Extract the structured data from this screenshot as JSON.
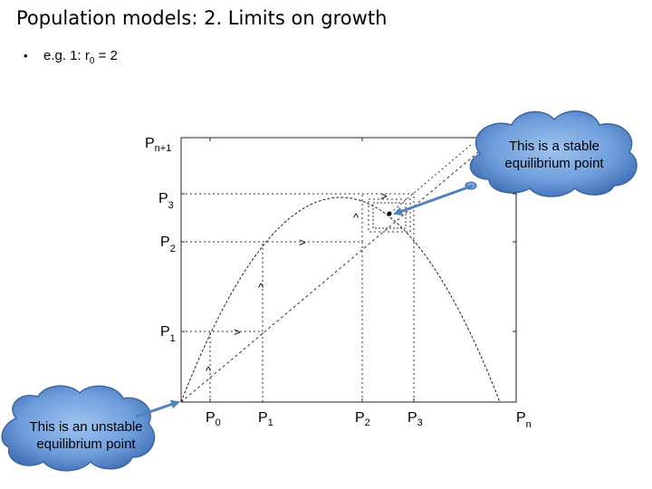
{
  "slide": {
    "title": "Population models: 2. Limits on growth",
    "bullet_marker": "•",
    "bullet_prefix": "e.g. 1: r",
    "bullet_subscript": "0",
    "bullet_suffix": " = 2"
  },
  "diagram": {
    "y_axis_label": {
      "main": "P",
      "sub": "n+1"
    },
    "x_axis_label": {
      "main": "P",
      "sub": "n"
    },
    "y_labels": [
      {
        "main": "P",
        "sub": "3"
      },
      {
        "main": "P",
        "sub": "2"
      },
      {
        "main": "P",
        "sub": "1"
      }
    ],
    "x_labels": [
      {
        "main": "P",
        "sub": "0"
      },
      {
        "main": "P",
        "sub": "1"
      },
      {
        "main": "P",
        "sub": "2"
      },
      {
        "main": "P",
        "sub": "3"
      }
    ],
    "arrow_glyph_right": ">",
    "arrow_glyph_up": "^"
  },
  "callouts": {
    "stable": "This is a stable equilibrium point",
    "unstable": "This is an unstable equilibrium point",
    "cloud_color": "#4a7ebb",
    "arrow_color": "#4f81bd"
  }
}
